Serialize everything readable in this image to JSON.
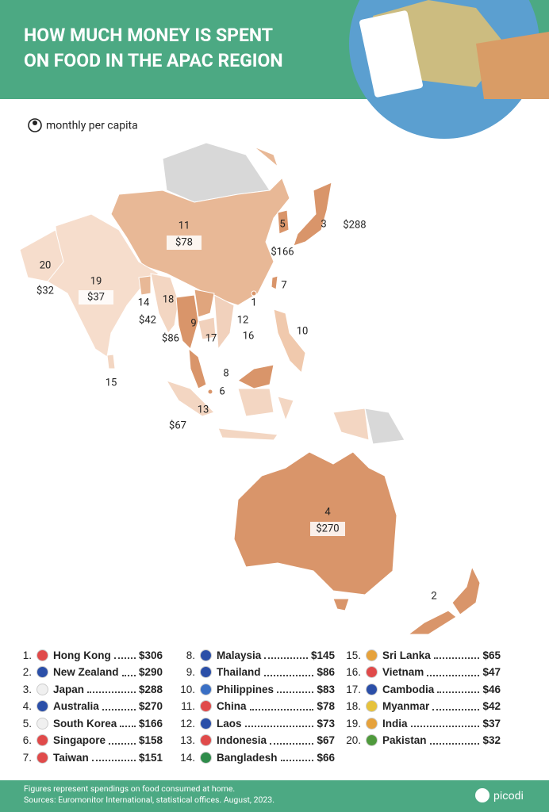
{
  "header": {
    "title_lines": [
      "HOW MUCH MONEY IS SPENT",
      "ON FOOD IN THE APAC REGION"
    ]
  },
  "legend": {
    "label": "monthly per capita"
  },
  "map": {
    "labels": [
      {
        "number": "11",
        "value": "$78"
      },
      {
        "number": "5",
        "value": "$166"
      },
      {
        "number": "3",
        "value": "$288"
      },
      {
        "number": "7"
      },
      {
        "number": "1"
      },
      {
        "number": "20",
        "value": "$32"
      },
      {
        "number": "19",
        "value": "$37"
      },
      {
        "number": "14"
      },
      {
        "number": "18",
        "value": "$42"
      },
      {
        "number": "9",
        "value": "$86"
      },
      {
        "number": "12"
      },
      {
        "number": "17"
      },
      {
        "number": "16"
      },
      {
        "number": "10"
      },
      {
        "number": "15"
      },
      {
        "number": "8"
      },
      {
        "number": "6"
      },
      {
        "number": "13",
        "value": "$67"
      },
      {
        "number": "4",
        "value": "$270"
      },
      {
        "number": "2"
      }
    ]
  },
  "ranking": {
    "items": [
      {
        "rank": "1.",
        "country": "Hong Kong",
        "value": "$306"
      },
      {
        "rank": "2.",
        "country": "New Zealand",
        "value": "$290"
      },
      {
        "rank": "3.",
        "country": "Japan",
        "value": "$288"
      },
      {
        "rank": "4.",
        "country": "Australia",
        "value": "$270"
      },
      {
        "rank": "5.",
        "country": "South Korea",
        "value": "$166"
      },
      {
        "rank": "6.",
        "country": "Singapore",
        "value": "$158"
      },
      {
        "rank": "7.",
        "country": "Taiwan",
        "value": "$151"
      },
      {
        "rank": "8.",
        "country": "Malaysia",
        "value": "$145"
      },
      {
        "rank": "9.",
        "country": "Thailand",
        "value": "$86"
      },
      {
        "rank": "10.",
        "country": "Philippines",
        "value": "$83"
      },
      {
        "rank": "11.",
        "country": "China",
        "value": "$78"
      },
      {
        "rank": "12.",
        "country": "Laos",
        "value": "$73"
      },
      {
        "rank": "13.",
        "country": "Indonesia",
        "value": "$67"
      },
      {
        "rank": "14.",
        "country": "Bangladesh",
        "value": "$66"
      },
      {
        "rank": "15.",
        "country": "Sri Lanka",
        "value": "$65"
      },
      {
        "rank": "16.",
        "country": "Vietnam",
        "value": "$47"
      },
      {
        "rank": "17.",
        "country": "Cambodia",
        "value": "$46"
      },
      {
        "rank": "18.",
        "country": "Myanmar",
        "value": "$42"
      },
      {
        "rank": "19.",
        "country": "India",
        "value": "$37"
      },
      {
        "rank": "20.",
        "country": "Pakistan",
        "value": "$32"
      }
    ]
  },
  "footer": {
    "lines": [
      "Figures represent spendings on food consumed at home.",
      "Sources: Euromonitor International, statistical offices. August, 2023."
    ],
    "brand": "picodi"
  }
}
